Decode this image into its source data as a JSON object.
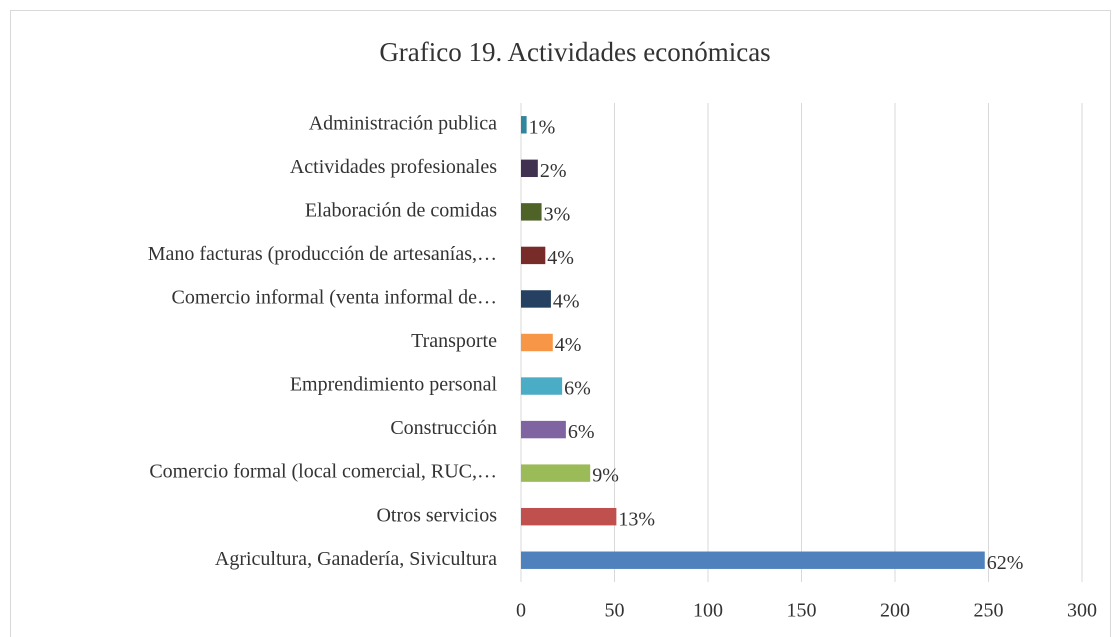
{
  "chart_data": {
    "type": "barh",
    "title": "Grafico 19.  Actividades económicas",
    "categories": [
      "Administración publica",
      "Actividades profesionales",
      "Elaboración de comidas",
      "Mano facturas (producción de artesanías,…",
      "Comercio informal (venta informal de…",
      "Transporte",
      "Emprendimiento personal",
      "Construcción",
      "Comercio formal (local comercial, RUC,…",
      "Otros servicios",
      "Agricultura, Ganadería, Sivicultura"
    ],
    "values": [
      3,
      9,
      11,
      13,
      16,
      17,
      22,
      24,
      37,
      51,
      248
    ],
    "value_labels": [
      "1%",
      "2%",
      "3%",
      "4%",
      "4%",
      "4%",
      "6%",
      "6%",
      "9%",
      "13%",
      "62%"
    ],
    "colors": [
      "#31859c",
      "#403151",
      "#4f6228",
      "#772c2a",
      "#254061",
      "#f79646",
      "#4bacc6",
      "#8064a2",
      "#9bbb59",
      "#c0504d",
      "#4f81bd"
    ],
    "xlim": [
      0,
      300
    ],
    "xticks": [
      0,
      50,
      100,
      150,
      200,
      250,
      300
    ],
    "grid": true
  }
}
